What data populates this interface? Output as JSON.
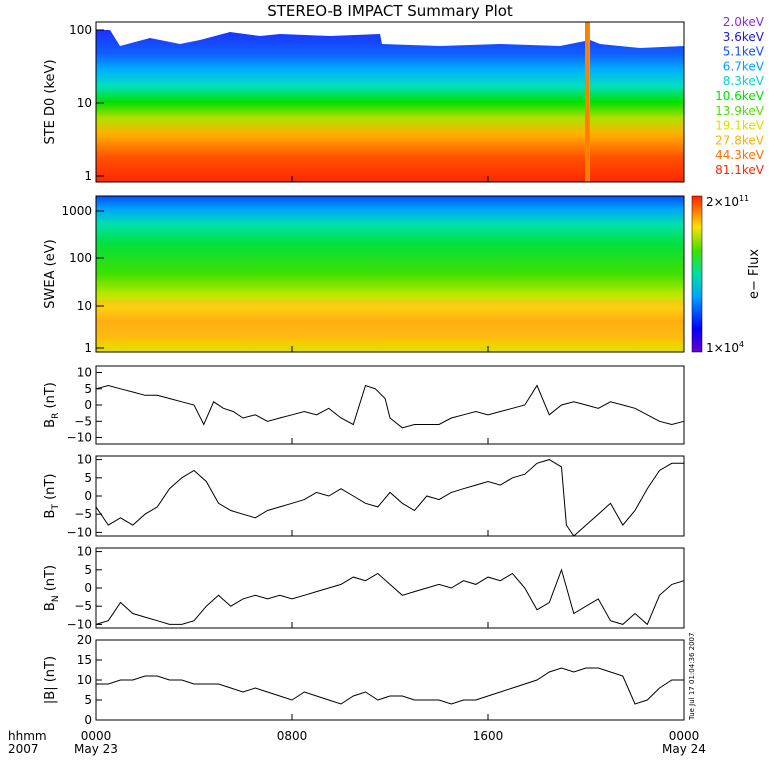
{
  "figure": {
    "title": "STEREO-B IMPACT Summary Plot",
    "footer": {
      "left_label_1": "hhmm",
      "left_label_2": "2007",
      "stamp": "Tue Jul 17 01:04:36 2007"
    }
  },
  "chart_data": [
    {
      "type": "line",
      "id": "ste",
      "ylabel": "STE D0 (keV)",
      "yscale": "log",
      "ylim": [
        1,
        100
      ],
      "yticks": [
        "1",
        "10",
        "100"
      ],
      "legend_placement": "right",
      "series": [
        {
          "name": "2.0keV",
          "color": "#8a2be2"
        },
        {
          "name": "3.6keV",
          "color": "#1a1ad0"
        },
        {
          "name": "5.1keV",
          "color": "#1050ff"
        },
        {
          "name": "6.7keV",
          "color": "#00a0ff"
        },
        {
          "name": "8.3keV",
          "color": "#00d6c8"
        },
        {
          "name": "10.6keV",
          "color": "#00e000"
        },
        {
          "name": "13.9keV",
          "color": "#50e000"
        },
        {
          "name": "19.1keV",
          "color": "#d8e000"
        },
        {
          "name": "27.8keV",
          "color": "#ffb000"
        },
        {
          "name": "44.3keV",
          "color": "#ff7000"
        },
        {
          "name": "81.1keV",
          "color": "#ff2800"
        }
      ]
    },
    {
      "type": "heatmap",
      "id": "swea",
      "ylabel": "SWEA (eV)",
      "yscale": "log",
      "ylim": [
        1,
        2000
      ],
      "yticks": [
        "1",
        "10",
        "100",
        "1000"
      ],
      "colorbar": {
        "label": "e− Flux",
        "max_base": "2×10",
        "max_exp": "11",
        "min_base": "1×10",
        "min_exp": "4"
      }
    },
    {
      "type": "line",
      "id": "br",
      "ylabel_main": "B",
      "ylabel_sub": "R",
      "ylabel_unit": " (nT)",
      "ylim": [
        -12,
        12
      ],
      "yticks": [
        "10",
        "5",
        "0",
        "−5",
        "−10"
      ],
      "x": [
        0,
        0.5,
        1,
        1.5,
        2,
        2.5,
        3,
        3.5,
        4,
        4.4,
        4.8,
        5.2,
        5.6,
        6,
        6.5,
        7,
        7.5,
        8,
        8.5,
        9,
        9.5,
        10,
        10.5,
        11,
        11.4,
        11.8,
        12,
        12.5,
        13,
        13.5,
        14,
        14.5,
        15,
        15.5,
        16,
        16.5,
        17,
        17.5,
        18,
        18.5,
        19,
        19.5,
        20,
        20.5,
        21,
        21.5,
        22,
        22.5,
        23,
        23.5,
        24
      ],
      "y": [
        5,
        6,
        5,
        4,
        3,
        3,
        2,
        1,
        0,
        -6,
        1,
        -1,
        -2,
        -4,
        -3,
        -5,
        -4,
        -3,
        -2,
        -3,
        -1,
        -4,
        -6,
        6,
        5,
        2,
        -4,
        -7,
        -6,
        -6,
        -6,
        -4,
        -3,
        -2,
        -3,
        -2,
        -1,
        0,
        6,
        -3,
        0,
        1,
        0,
        -1,
        1,
        0,
        -1,
        -3,
        -5,
        -6,
        -5
      ]
    },
    {
      "type": "line",
      "id": "bt",
      "ylabel_main": "B",
      "ylabel_sub": "T",
      "ylabel_unit": " (nT)",
      "ylim": [
        -11,
        11
      ],
      "yticks": [
        "10",
        "5",
        "0",
        "−5",
        "−10"
      ],
      "x": [
        0,
        0.5,
        1,
        1.5,
        2,
        2.5,
        3,
        3.5,
        4,
        4.5,
        5,
        5.5,
        6,
        6.5,
        7,
        7.5,
        8,
        8.5,
        9,
        9.5,
        10,
        10.5,
        11,
        11.5,
        12,
        12.5,
        13,
        13.5,
        14,
        14.5,
        15,
        15.5,
        16,
        16.5,
        17,
        17.5,
        18,
        18.5,
        19,
        19.2,
        19.5,
        20,
        20.5,
        21,
        21.5,
        22,
        22.5,
        23,
        23.5,
        24
      ],
      "y": [
        -3,
        -8,
        -6,
        -8,
        -5,
        -3,
        2,
        5,
        7,
        4,
        -2,
        -4,
        -5,
        -6,
        -4,
        -3,
        -2,
        -1,
        1,
        0,
        2,
        0,
        -2,
        -3,
        1,
        -2,
        -4,
        0,
        -1,
        1,
        2,
        3,
        4,
        3,
        5,
        6,
        9,
        10,
        8,
        -8,
        -11,
        -8,
        -5,
        -2,
        -8,
        -4,
        2,
        7,
        9,
        9
      ]
    },
    {
      "type": "line",
      "id": "bn",
      "ylabel_main": "B",
      "ylabel_sub": "N",
      "ylabel_unit": " (nT)",
      "ylim": [
        -11,
        11
      ],
      "yticks": [
        "10",
        "5",
        "0",
        "−5",
        "−10"
      ],
      "x": [
        0,
        0.5,
        1,
        1.5,
        2,
        2.5,
        3,
        3.5,
        4,
        4.5,
        5,
        5.5,
        6,
        6.5,
        7,
        7.5,
        8,
        8.5,
        9,
        9.5,
        10,
        10.5,
        11,
        11.5,
        12,
        12.5,
        13,
        13.5,
        14,
        14.5,
        15,
        15.5,
        16,
        16.5,
        17,
        17.5,
        18,
        18.5,
        19,
        19.5,
        20,
        20.5,
        21,
        21.5,
        22,
        22.5,
        23,
        23.5,
        24
      ],
      "y": [
        -10,
        -9,
        -4,
        -7,
        -8,
        -9,
        -10,
        -10,
        -9,
        -5,
        -2,
        -5,
        -3,
        -2,
        -3,
        -2,
        -3,
        -2,
        -1,
        0,
        1,
        3,
        2,
        4,
        1,
        -2,
        -1,
        0,
        1,
        0,
        2,
        1,
        3,
        2,
        4,
        0,
        -6,
        -4,
        5,
        -7,
        -5,
        -3,
        -9,
        -10,
        -7,
        -10,
        -2,
        1,
        2
      ]
    },
    {
      "type": "line",
      "id": "bmag",
      "ylabel": "|B| (nT)",
      "ylim": [
        0,
        20
      ],
      "yticks": [
        "20",
        "15",
        "10",
        "5",
        "0"
      ],
      "xticks": [
        {
          "x": 0,
          "time": "0000",
          "date": "May 23"
        },
        {
          "x": 8,
          "time": "0800",
          "date": ""
        },
        {
          "x": 16,
          "time": "1600",
          "date": ""
        },
        {
          "x": 24,
          "time": "0000",
          "date": "May 24"
        }
      ],
      "x": [
        0,
        0.5,
        1,
        1.5,
        2,
        2.5,
        3,
        3.5,
        4,
        4.5,
        5,
        5.5,
        6,
        6.5,
        7,
        7.5,
        8,
        8.5,
        9,
        9.5,
        10,
        10.5,
        11,
        11.5,
        12,
        12.5,
        13,
        13.5,
        14,
        14.5,
        15,
        15.5,
        16,
        16.5,
        17,
        17.5,
        18,
        18.5,
        19,
        19.5,
        20,
        20.5,
        21,
        21.5,
        22,
        22.5,
        23,
        23.5,
        24
      ],
      "y": [
        9,
        9,
        10,
        10,
        11,
        11,
        10,
        10,
        9,
        9,
        9,
        8,
        7,
        8,
        7,
        6,
        5,
        7,
        6,
        5,
        4,
        6,
        7,
        5,
        6,
        6,
        5,
        5,
        5,
        4,
        5,
        5,
        6,
        7,
        8,
        9,
        10,
        12,
        13,
        12,
        13,
        13,
        12,
        11,
        4,
        5,
        8,
        10,
        10
      ]
    }
  ]
}
